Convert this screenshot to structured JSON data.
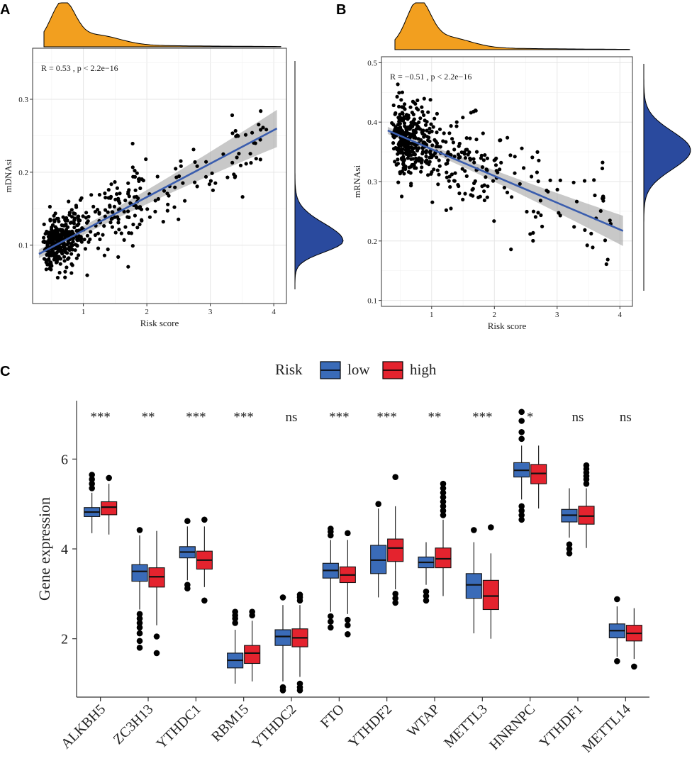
{
  "panels": {
    "a": "A",
    "b": "B",
    "c": "C"
  },
  "chart_data": [
    {
      "type": "scatter",
      "title": "",
      "stat_label": "R = 0.53 , p < 2.2e−16",
      "xlabel": "Risk score",
      "ylabel": "mDNAsi",
      "xlim": [
        0.2,
        4.2
      ],
      "ylim": [
        0.02,
        0.37
      ],
      "xticks": [
        "1",
        "2",
        "3",
        "4"
      ],
      "yticks": [
        "0.1",
        "0.2",
        "0.3"
      ],
      "regression": {
        "x": [
          0.3,
          4.05
        ],
        "y": [
          0.088,
          0.26
        ]
      },
      "point_color": "#000000",
      "line_color": "#3A5DAE",
      "marginal_x_color": "#F29F1F",
      "marginal_y_color": "#2A4A9E"
    },
    {
      "type": "scatter",
      "title": "",
      "stat_label": "R = −0.51 , p < 2.2e−16",
      "xlabel": "Risk score",
      "ylabel": "mRNAsi",
      "xlim": [
        0.2,
        4.2
      ],
      "ylim": [
        0.09,
        0.51
      ],
      "xticks": [
        "1",
        "2",
        "3",
        "4"
      ],
      "yticks": [
        "0.1",
        "0.2",
        "0.3",
        "0.4",
        "0.5"
      ],
      "regression": {
        "x": [
          0.3,
          4.05
        ],
        "y": [
          0.386,
          0.217
        ]
      },
      "point_color": "#000000",
      "line_color": "#3A5DAE",
      "marginal_x_color": "#F29F1F",
      "marginal_y_color": "#2A4A9E"
    },
    {
      "type": "box",
      "title": "",
      "legend_title": "Risk",
      "xlabel": "",
      "ylabel": "Gene expression",
      "ylim": [
        0.7,
        7.3
      ],
      "yticks": [
        "2",
        "4",
        "6"
      ],
      "categories": [
        "ALKBH5",
        "ZC3H13",
        "YTHDC1",
        "RBM15",
        "YTHDC2",
        "FTO",
        "YTHDF2",
        "WTAP",
        "METTL3",
        "HNRNPC",
        "YTHDF1",
        "METTL14"
      ],
      "significance": [
        "***",
        "**",
        "***",
        "***",
        "ns",
        "***",
        "***",
        "**",
        "***",
        "*",
        "ns",
        "ns"
      ],
      "series": [
        {
          "name": "low",
          "color": "#3A6BB8",
          "boxes": [
            {
              "min": 4.35,
              "q1": 4.72,
              "median": 4.82,
              "q3": 4.92,
              "max": 5.25,
              "outliers": [
                5.35,
                5.45,
                5.55,
                5.65
              ]
            },
            {
              "min": 2.65,
              "q1": 3.28,
              "median": 3.5,
              "q3": 3.65,
              "max": 4.3,
              "outliers": [
                2.55,
                2.45,
                2.35,
                2.25,
                2.12,
                1.95,
                1.8,
                4.42
              ]
            },
            {
              "min": 3.3,
              "q1": 3.8,
              "median": 3.93,
              "q3": 4.05,
              "max": 4.5,
              "outliers": [
                3.2,
                3.12,
                4.62
              ]
            },
            {
              "min": 1.0,
              "q1": 1.35,
              "median": 1.52,
              "q3": 1.68,
              "max": 2.2,
              "outliers": [
                2.35,
                2.45,
                2.52,
                2.6
              ]
            },
            {
              "min": 1.05,
              "q1": 1.85,
              "median": 2.05,
              "q3": 2.2,
              "max": 2.75,
              "outliers": [
                0.92,
                0.85,
                2.92
              ]
            },
            {
              "min": 2.6,
              "q1": 3.35,
              "median": 3.52,
              "q3": 3.68,
              "max": 4.2,
              "outliers": [
                2.5,
                2.38,
                2.25,
                4.3,
                4.38,
                4.45
              ]
            },
            {
              "min": 2.92,
              "q1": 3.45,
              "median": 3.75,
              "q3": 4.08,
              "max": 4.9,
              "outliers": [
                5.0
              ]
            },
            {
              "min": 3.2,
              "q1": 3.58,
              "median": 3.7,
              "q3": 3.82,
              "max": 4.15,
              "outliers": [
                3.05,
                2.95,
                2.85
              ]
            },
            {
              "min": 2.12,
              "q1": 2.9,
              "median": 3.2,
              "q3": 3.45,
              "max": 4.15,
              "outliers": [
                4.42
              ]
            },
            {
              "min": 5.1,
              "q1": 5.6,
              "median": 5.75,
              "q3": 5.92,
              "max": 6.3,
              "outliers": [
                4.95,
                4.85,
                4.75,
                4.65,
                6.45,
                6.6,
                6.85,
                7.05
              ]
            },
            {
              "min": 4.25,
              "q1": 4.6,
              "median": 4.75,
              "q3": 4.88,
              "max": 5.35,
              "outliers": [
                4.1,
                4.0,
                3.9
              ]
            },
            {
              "min": 1.6,
              "q1": 2.02,
              "median": 2.18,
              "q3": 2.33,
              "max": 2.72,
              "outliers": [
                2.88,
                1.5
              ]
            }
          ]
        },
        {
          "name": "high",
          "color": "#E4232E",
          "boxes": [
            {
              "min": 4.32,
              "q1": 4.76,
              "median": 4.93,
              "q3": 5.05,
              "max": 5.45,
              "outliers": [
                5.58
              ]
            },
            {
              "min": 2.3,
              "q1": 3.15,
              "median": 3.38,
              "q3": 3.58,
              "max": 4.4,
              "outliers": [
                2.05,
                1.68
              ]
            },
            {
              "min": 3.15,
              "q1": 3.55,
              "median": 3.75,
              "q3": 3.95,
              "max": 4.5,
              "outliers": [
                2.85,
                4.65
              ]
            },
            {
              "min": 1.05,
              "q1": 1.45,
              "median": 1.68,
              "q3": 1.85,
              "max": 2.4,
              "outliers": [
                2.52,
                2.6
              ]
            },
            {
              "min": 1.15,
              "q1": 1.82,
              "median": 2.02,
              "q3": 2.22,
              "max": 2.75,
              "outliers": [
                1.0,
                0.92,
                0.85,
                2.85,
                2.92,
                2.98
              ]
            },
            {
              "min": 2.55,
              "q1": 3.25,
              "median": 3.42,
              "q3": 3.6,
              "max": 4.2,
              "outliers": [
                2.42,
                2.3,
                2.1,
                4.35
              ]
            },
            {
              "min": 3.1,
              "q1": 3.72,
              "median": 4.02,
              "q3": 4.22,
              "max": 4.95,
              "outliers": [
                3.0,
                2.9,
                2.8,
                5.6
              ]
            },
            {
              "min": 2.95,
              "q1": 3.58,
              "median": 3.78,
              "q3": 4.02,
              "max": 4.65,
              "outliers": [
                4.75,
                4.85,
                4.95,
                5.05,
                5.15,
                5.25,
                5.35,
                5.45
              ]
            },
            {
              "min": 2.0,
              "q1": 2.65,
              "median": 2.95,
              "q3": 3.3,
              "max": 3.9,
              "outliers": [
                4.48
              ]
            },
            {
              "min": 4.9,
              "q1": 5.45,
              "median": 5.68,
              "q3": 5.88,
              "max": 6.3,
              "outliers": []
            },
            {
              "min": 4.02,
              "q1": 4.55,
              "median": 4.73,
              "q3": 4.95,
              "max": 5.35,
              "outliers": [
                5.45,
                5.55,
                5.62,
                5.7,
                5.78,
                5.86
              ]
            },
            {
              "min": 1.55,
              "q1": 1.95,
              "median": 2.12,
              "q3": 2.3,
              "max": 2.68,
              "outliers": [
                1.38
              ]
            }
          ]
        }
      ]
    }
  ]
}
